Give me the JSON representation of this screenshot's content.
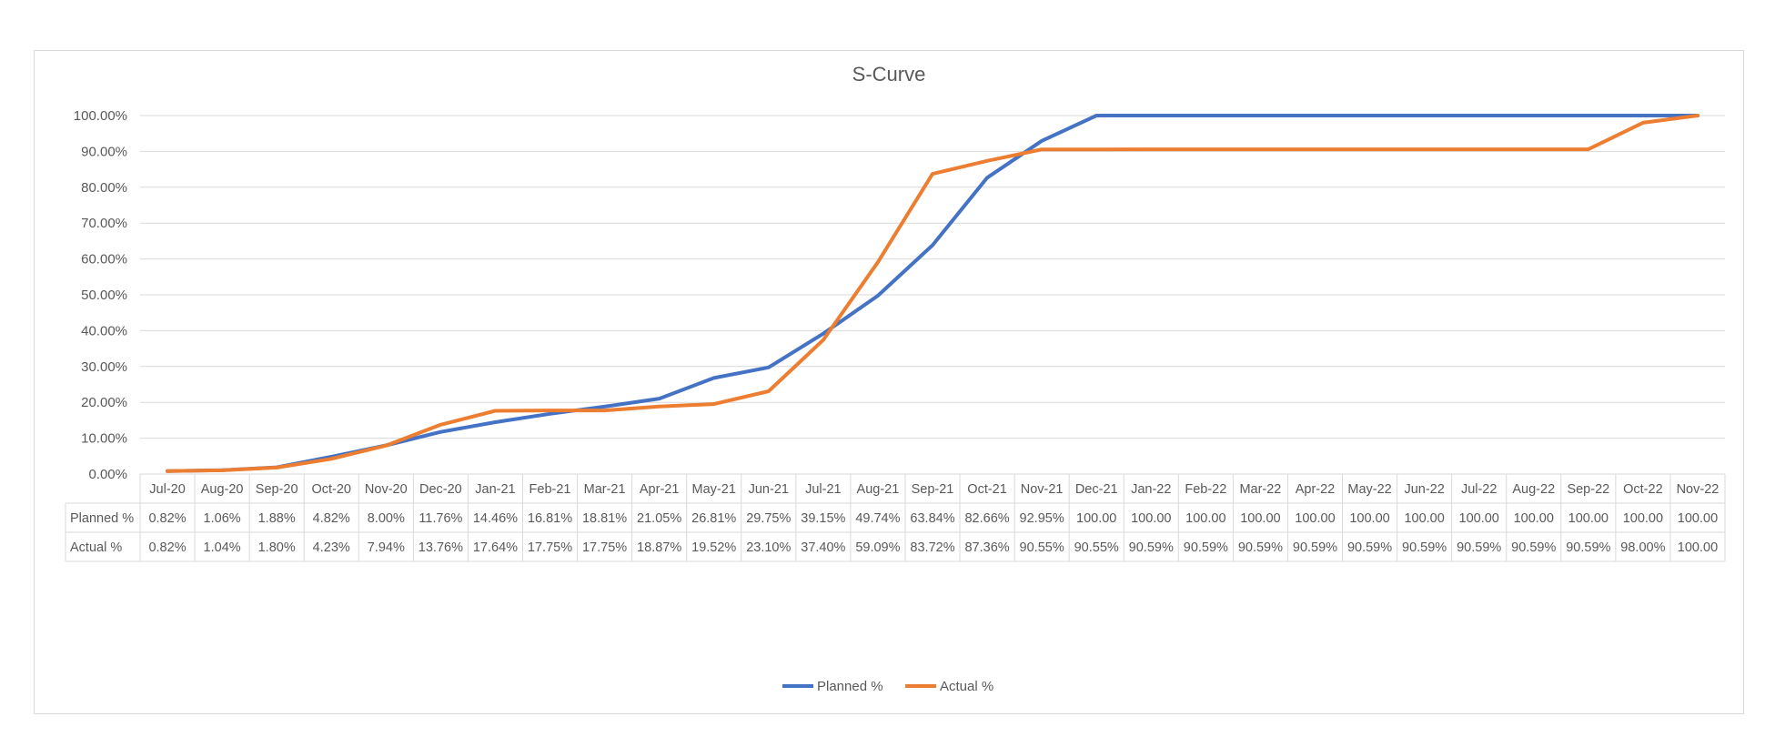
{
  "chart_data": {
    "type": "line",
    "title": "S-Curve",
    "xlabel": "",
    "ylabel": "",
    "ylim": [
      0,
      100
    ],
    "yticks": [
      "0.00%",
      "10.00%",
      "20.00%",
      "30.00%",
      "40.00%",
      "50.00%",
      "60.00%",
      "70.00%",
      "80.00%",
      "90.00%",
      "100.00%"
    ],
    "grid": true,
    "legend": "bottom",
    "categories": [
      "Jul-20",
      "Aug-20",
      "Sep-20",
      "Oct-20",
      "Nov-20",
      "Dec-20",
      "Jan-21",
      "Feb-21",
      "Mar-21",
      "Apr-21",
      "May-21",
      "Jun-21",
      "Jul-21",
      "Aug-21",
      "Sep-21",
      "Oct-21",
      "Nov-21",
      "Dec-21",
      "Jan-22",
      "Feb-22",
      "Mar-22",
      "Apr-22",
      "May-22",
      "Jun-22",
      "Jul-22",
      "Aug-22",
      "Sep-22",
      "Oct-22",
      "Nov-22"
    ],
    "series": [
      {
        "name": "Planned %",
        "color": "#4472c4",
        "values": [
          0.82,
          1.06,
          1.88,
          4.82,
          8.0,
          11.76,
          14.46,
          16.81,
          18.81,
          21.05,
          26.81,
          29.75,
          39.15,
          49.74,
          63.84,
          82.66,
          92.95,
          100,
          100,
          100,
          100,
          100,
          100,
          100,
          100,
          100,
          100,
          100,
          100
        ],
        "labels": [
          "0.82%",
          "1.06%",
          "1.88%",
          "4.82%",
          "8.00%",
          "11.76%",
          "14.46%",
          "16.81%",
          "18.81%",
          "21.05%",
          "26.81%",
          "29.75%",
          "39.15%",
          "49.74%",
          "63.84%",
          "82.66%",
          "92.95%",
          "100.00",
          "100.00",
          "100.00",
          "100.00",
          "100.00",
          "100.00",
          "100.00",
          "100.00",
          "100.00",
          "100.00",
          "100.00",
          "100.00"
        ]
      },
      {
        "name": "Actual %",
        "color": "#ed7d31",
        "values": [
          0.82,
          1.04,
          1.8,
          4.23,
          7.94,
          13.76,
          17.64,
          17.75,
          17.75,
          18.87,
          19.52,
          23.1,
          37.4,
          59.09,
          83.72,
          87.36,
          90.55,
          90.55,
          90.59,
          90.59,
          90.59,
          90.59,
          90.59,
          90.59,
          90.59,
          90.59,
          90.59,
          98.0,
          100
        ],
        "labels": [
          "0.82%",
          "1.04%",
          "1.80%",
          "4.23%",
          "7.94%",
          "13.76%",
          "17.64%",
          "17.75%",
          "17.75%",
          "18.87%",
          "19.52%",
          "23.10%",
          "37.40%",
          "59.09%",
          "83.72%",
          "87.36%",
          "90.55%",
          "90.55%",
          "90.59%",
          "90.59%",
          "90.59%",
          "90.59%",
          "90.59%",
          "90.59%",
          "90.59%",
          "90.59%",
          "90.59%",
          "98.00%",
          "100.00"
        ]
      }
    ]
  }
}
